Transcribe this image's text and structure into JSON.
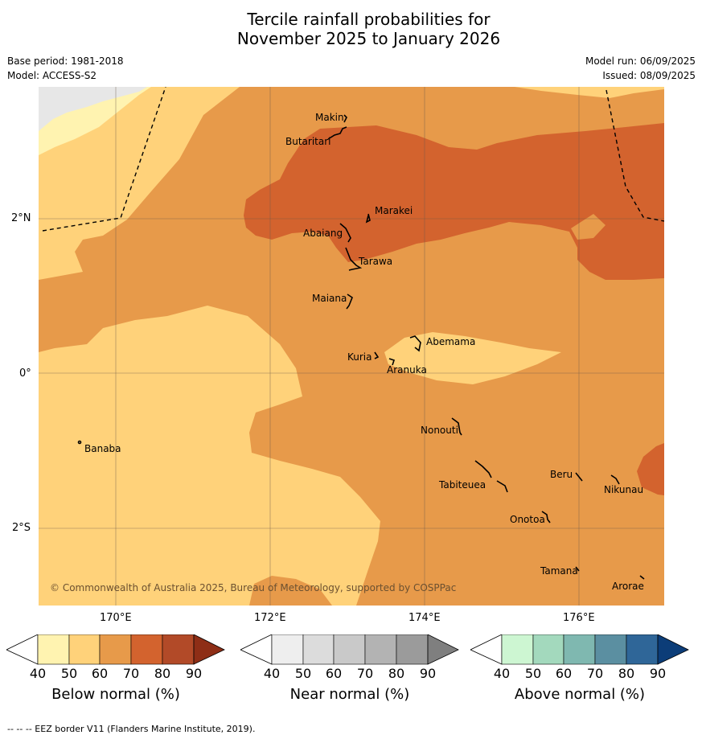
{
  "title_line1": "Tercile rainfall probabilities for",
  "title_line2": "November 2025 to January 2026",
  "meta_left": [
    "Base period: 1981-2018",
    "Model: ACCESS-S2"
  ],
  "meta_right": [
    "Model run: 06/09/2025",
    "Issued: 08/09/2025"
  ],
  "x_ticks": [
    "170°E",
    "172°E",
    "174°E",
    "176°E"
  ],
  "y_ticks": [
    "2°N",
    "0°",
    "2°S"
  ],
  "places": [
    "Makin",
    "Butaritari",
    "Marakei",
    "Abaiang",
    "Tarawa",
    "Maiana",
    "Abemama",
    "Kuria",
    "Aranuka",
    "Nonouti",
    "Banaba",
    "Beru",
    "Tabiteuea",
    "Nikunau",
    "Onotoa",
    "Tamana",
    "Arorae"
  ],
  "copyright": "© Commonwealth of Australia 2025, Bureau of Meteorology, supported by COSPPac",
  "colorbars": [
    {
      "label": "Below normal (%)",
      "colors": [
        "#fff3b0",
        "#ffd27a",
        "#e79a4a",
        "#d3632e",
        "#b24a28",
        "#8e2e16"
      ]
    },
    {
      "label": "Near normal (%)",
      "colors": [
        "#eeeeee",
        "#dcdcdc",
        "#c9c9c9",
        "#b3b3b3",
        "#9b9b9b",
        "#7f7f7f"
      ]
    },
    {
      "label": "Above normal (%)",
      "colors": [
        "#cdf6d2",
        "#a3d9bd",
        "#7fb8b0",
        "#5b8fa1",
        "#2f6698",
        "#0c3d78"
      ]
    }
  ],
  "colorbar_ticks": [
    "40",
    "50",
    "60",
    "70",
    "80",
    "90"
  ],
  "footer": "--  --  -- EEZ border V11 (Flanders Marine Institute, 2019)."
}
